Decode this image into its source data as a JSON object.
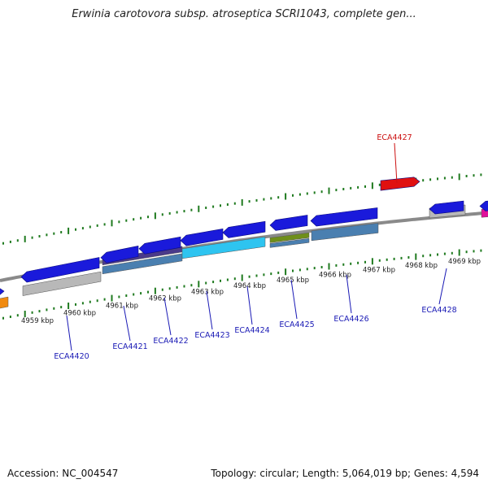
{
  "title": "Erwinia carotovora subsp. atroseptica SCRI1043, complete gen...",
  "footer": {
    "accession": "Accession: NC_004547",
    "summary": "Topology: circular; Length: 5,064,019 bp; Genes: 4,594"
  },
  "colors": {
    "backbone": "#8a8a8a",
    "tick": "#1f7a1f",
    "forward_gene": "#1a1adb",
    "label_blue": "#1a1ab5",
    "label_red": "#cc1010",
    "highlight_gene": "#e01010",
    "grey_feature": "#b8b8b8",
    "steel_feature": "#4a7fb0",
    "cyan_feature": "#2ec4f0",
    "olive_feature": "#6f8f1a",
    "purple_feature": "#4a3a8a",
    "magenta_feature": "#e0109a",
    "orange_feature": "#f08a10"
  },
  "scale_labels": [
    "4959 kbp",
    "4960 kbp",
    "4961 kbp",
    "4962 kbp",
    "4963 kbp",
    "4964 kbp",
    "4965 kbp",
    "4966 kbp",
    "4967 kbp",
    "4968 kbp",
    "4969 kbp"
  ],
  "genes": [
    {
      "label": "ECA4420",
      "color": "label_blue",
      "feature": "forward_gene"
    },
    {
      "label": "ECA4421",
      "color": "label_blue",
      "feature": "forward_gene"
    },
    {
      "label": "ECA4422",
      "color": "label_blue",
      "feature": "forward_gene"
    },
    {
      "label": "ECA4423",
      "color": "label_blue",
      "feature": "forward_gene"
    },
    {
      "label": "ECA4424",
      "color": "label_blue",
      "feature": "forward_gene"
    },
    {
      "label": "ECA4425",
      "color": "label_blue",
      "feature": "forward_gene"
    },
    {
      "label": "ECA4426",
      "color": "label_blue",
      "feature": "forward_gene"
    },
    {
      "label": "ECA4427",
      "color": "label_red",
      "feature": "highlight_gene"
    },
    {
      "label": "ECA4428",
      "color": "label_blue",
      "feature": "forward_gene"
    }
  ]
}
